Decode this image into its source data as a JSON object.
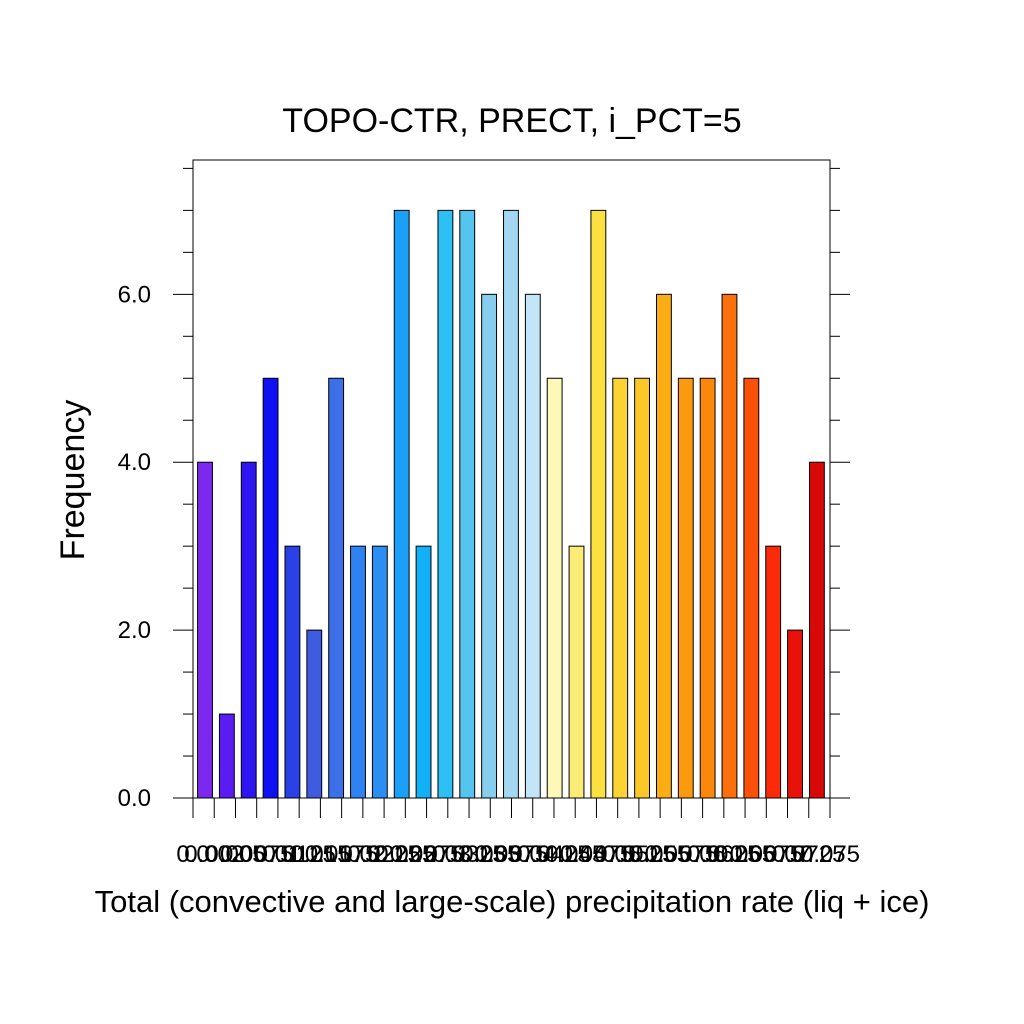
{
  "chart_data": {
    "type": "bar",
    "title": "TOPO-CTR, PRECT, i_PCT=5",
    "xlabel": "Total (convective and large-scale) precipitation rate (liq + ice)",
    "ylabel": "Frequency",
    "ylim": [
      0,
      7.6
    ],
    "yticks": [
      0,
      2,
      4,
      6
    ],
    "ytick_labels": [
      "0.0",
      "2.0",
      "4.0",
      "6.0"
    ],
    "grid": false,
    "values": [
      4,
      1,
      4,
      5,
      3,
      2,
      5,
      3,
      3,
      7,
      3,
      7,
      7,
      6,
      7,
      6,
      5,
      3,
      7,
      5,
      5,
      6,
      5,
      5,
      6,
      5,
      3,
      2,
      4
    ],
    "colors": [
      "#7b28ef",
      "#5a1cf3",
      "#2d14f0",
      "#1010f5",
      "#2a41e6",
      "#3d5ce0",
      "#3d6fe8",
      "#2f82f2",
      "#2b8ef3",
      "#1aa0f8",
      "#12b0f6",
      "#2cc0f4",
      "#55c4ef",
      "#86cdee",
      "#a4d8f2",
      "#c4e5f8",
      "#fdf8b8",
      "#fbec78",
      "#fbe040",
      "#fbd332",
      "#fbc827",
      "#fbae14",
      "#fb9a0c",
      "#fb880a",
      "#fb700a",
      "#fb500a",
      "#fb2a0a",
      "#e8120a",
      "#d80808"
    ],
    "xtick_labels": [
      "0.0",
      "0.002",
      "0.005",
      "0.0075",
      "0.01",
      "0.0125",
      "0.015",
      "0.0175",
      "0.02",
      "0.0225",
      "0.025",
      "0.0275",
      "0.03",
      "0.0325",
      "0.035",
      "0.0375",
      "0.04",
      "0.0425",
      "0.045",
      "0.0475",
      "0.05",
      "0.0525",
      "0.055",
      "0.0575",
      "0.06",
      "0.0625",
      "0.065",
      "0.0675",
      "0.07",
      "0.0725",
      "0.075"
    ]
  }
}
